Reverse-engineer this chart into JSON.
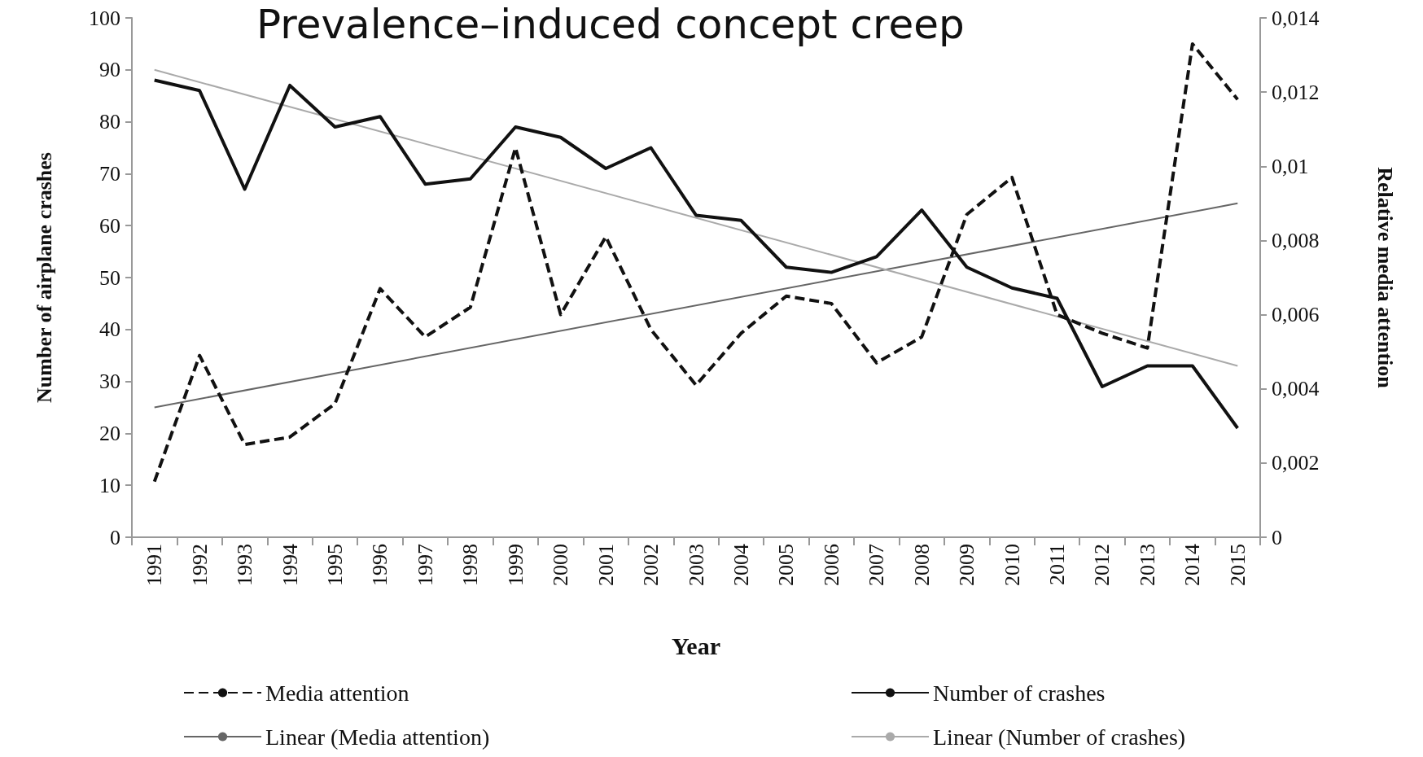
{
  "chart_data": {
    "type": "line",
    "title": "Prevalence–induced concept creep",
    "xlabel": "Year",
    "ylabel": "Number of airplane crashes",
    "y2label": "Relative media attention",
    "categories": [
      "1991",
      "1992",
      "1993",
      "1994",
      "1995",
      "1996",
      "1997",
      "1998",
      "1999",
      "2000",
      "2001",
      "2002",
      "2003",
      "2004",
      "2005",
      "2006",
      "2007",
      "2008",
      "2009",
      "2010",
      "2011",
      "2012",
      "2013",
      "2014",
      "2015"
    ],
    "series": [
      {
        "name": "Media attention",
        "color": "#111111",
        "axis": "y2",
        "line_style": "dashed",
        "values": [
          0.0015,
          0.0049,
          0.0025,
          0.0027,
          0.0036,
          0.0067,
          0.0054,
          0.0062,
          0.0105,
          0.006,
          0.0081,
          0.0056,
          0.0041,
          0.0055,
          0.0065,
          0.0063,
          0.0047,
          0.0054,
          0.0087,
          0.0097,
          0.006,
          0.0055,
          0.0051,
          0.0133,
          0.0118
        ]
      },
      {
        "name": "Number of crashes",
        "color": "#111111",
        "line_style": "solid",
        "values": [
          88,
          86,
          67,
          87,
          79,
          81,
          68,
          69,
          79,
          77,
          71,
          75,
          62,
          61,
          52,
          51,
          54,
          63,
          52,
          48,
          46,
          29,
          33,
          33,
          21
        ]
      },
      {
        "name": "Linear (Media attention)",
        "color": "#666666",
        "axis": "y2",
        "line_style": "solid",
        "values": [
          0.0035,
          null,
          null,
          null,
          null,
          null,
          null,
          null,
          null,
          null,
          null,
          null,
          null,
          null,
          null,
          null,
          null,
          null,
          null,
          null,
          null,
          null,
          null,
          null,
          0.009
        ]
      },
      {
        "name": "Linear (Number of crashes)",
        "color": "#aaaaaa",
        "line_style": "solid",
        "values": [
          90,
          null,
          null,
          null,
          null,
          null,
          null,
          null,
          null,
          null,
          null,
          null,
          null,
          null,
          null,
          null,
          null,
          null,
          null,
          null,
          null,
          null,
          null,
          null,
          33
        ]
      }
    ],
    "ylim": [
      0,
      100
    ],
    "yticks": [
      0,
      10,
      20,
      30,
      40,
      50,
      60,
      70,
      80,
      90,
      100
    ],
    "y2lim": [
      0,
      0.014
    ],
    "y2ticks": [
      {
        "value": 0,
        "label": "0"
      },
      {
        "value": 0.002,
        "label": "0,002"
      },
      {
        "value": 0.004,
        "label": "0,004"
      },
      {
        "value": 0.006,
        "label": "0,006"
      },
      {
        "value": 0.008,
        "label": "0,008"
      },
      {
        "value": 0.01,
        "label": "0,01"
      },
      {
        "value": 0.012,
        "label": "0,012"
      },
      {
        "value": 0.014,
        "label": "0,014"
      }
    ],
    "grid": false,
    "legend": "bottom",
    "marker": "none"
  }
}
